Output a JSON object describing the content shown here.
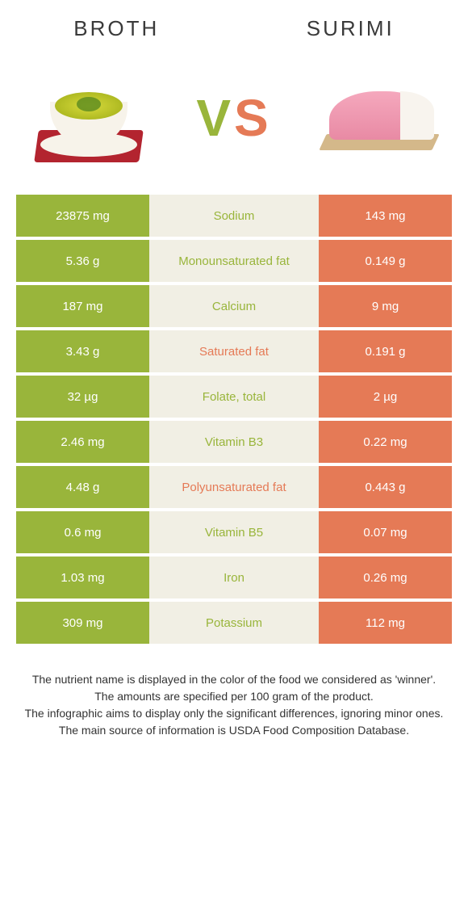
{
  "colors": {
    "left": "#99b53b",
    "right": "#e57a56",
    "mid_bg": "#f1efe4"
  },
  "header": {
    "left_title": "Broth",
    "right_title": "Surimi"
  },
  "vs": {
    "v": "V",
    "s": "S"
  },
  "rows": [
    {
      "left": "23875 mg",
      "label": "Sodium",
      "right": "143 mg",
      "winner": "left"
    },
    {
      "left": "5.36 g",
      "label": "Monounsaturated fat",
      "right": "0.149 g",
      "winner": "left"
    },
    {
      "left": "187 mg",
      "label": "Calcium",
      "right": "9 mg",
      "winner": "left"
    },
    {
      "left": "3.43 g",
      "label": "Saturated fat",
      "right": "0.191 g",
      "winner": "right"
    },
    {
      "left": "32 µg",
      "label": "Folate, total",
      "right": "2 µg",
      "winner": "left"
    },
    {
      "left": "2.46 mg",
      "label": "Vitamin B3",
      "right": "0.22 mg",
      "winner": "left"
    },
    {
      "left": "4.48 g",
      "label": "Polyunsaturated fat",
      "right": "0.443 g",
      "winner": "right"
    },
    {
      "left": "0.6 mg",
      "label": "Vitamin B5",
      "right": "0.07 mg",
      "winner": "left"
    },
    {
      "left": "1.03 mg",
      "label": "Iron",
      "right": "0.26 mg",
      "winner": "left"
    },
    {
      "left": "309 mg",
      "label": "Potassium",
      "right": "112 mg",
      "winner": "left"
    }
  ],
  "footer": {
    "line1": "The nutrient name is displayed in the color of the food we considered as 'winner'.",
    "line2": "The amounts are specified per 100 gram of the product.",
    "line3": "The infographic aims to display only the significant differences, ignoring minor ones.",
    "line4": "The main source of information is USDA Food Composition Database."
  }
}
